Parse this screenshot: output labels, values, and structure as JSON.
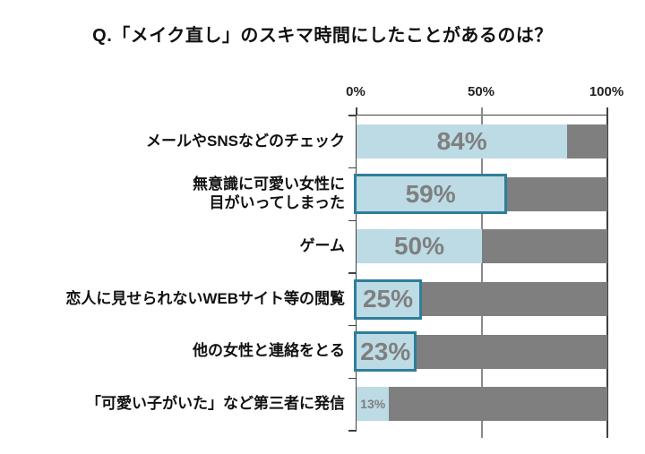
{
  "title": "Q.「メイク直し」のスキマ時間にしたことがあるのは？",
  "chart_data": {
    "type": "bar",
    "orientation": "horizontal",
    "title": "Q.「メイク直し」のスキマ時間にしたことがあるのは？",
    "categories": [
      "メールやSNSなどのチェック",
      "無意識に可愛い女性に目がいってしまった",
      "ゲーム",
      "恋人に見せられないWEBサイト等の閲覧",
      "他の女性と連絡をとる",
      "「可愛い子がいた」など第三者に発信"
    ],
    "values": [
      84,
      59,
      50,
      25,
      23,
      13
    ],
    "xlim": [
      0,
      100
    ],
    "x_ticks": [
      {
        "label": "0%",
        "pos": 0
      },
      {
        "label": "50%",
        "pos": 50
      },
      {
        "label": "100%",
        "pos": 100
      }
    ],
    "legend": null,
    "grid": "vertical-at-50-and-100",
    "rows": [
      {
        "label_lines": [
          "メールやSNSなどのチェック"
        ],
        "value": 84,
        "value_label": "84%",
        "highlighted": false,
        "small_label": false
      },
      {
        "label_lines": [
          "無意識に可愛い女性に",
          "目がいってしまった"
        ],
        "value": 59,
        "value_label": "59%",
        "highlighted": true,
        "small_label": false
      },
      {
        "label_lines": [
          "ゲーム"
        ],
        "value": 50,
        "value_label": "50%",
        "highlighted": false,
        "small_label": false
      },
      {
        "label_lines": [
          "恋人に見せられないWEBサイト等の閲覧"
        ],
        "value": 25,
        "value_label": "25%",
        "highlighted": true,
        "small_label": false
      },
      {
        "label_lines": [
          "他の女性と連絡をとる"
        ],
        "value": 23,
        "value_label": "23%",
        "highlighted": true,
        "small_label": false
      },
      {
        "label_lines": [
          "「可愛い子がいた」など第三者に発信"
        ],
        "value": 13,
        "value_label": "13%",
        "highlighted": false,
        "small_label": true
      }
    ],
    "colors": {
      "bar_fill": "#bcdbe5",
      "bar_track": "#7f7f7f",
      "highlight_border": "#2e7e99",
      "value_text": "#7f7f7f",
      "axis_line": "#404040",
      "gridline_50": "#8a8a8a",
      "gridline_100": "#404040",
      "title_text": "#111111",
      "category_text": "#111111"
    }
  }
}
